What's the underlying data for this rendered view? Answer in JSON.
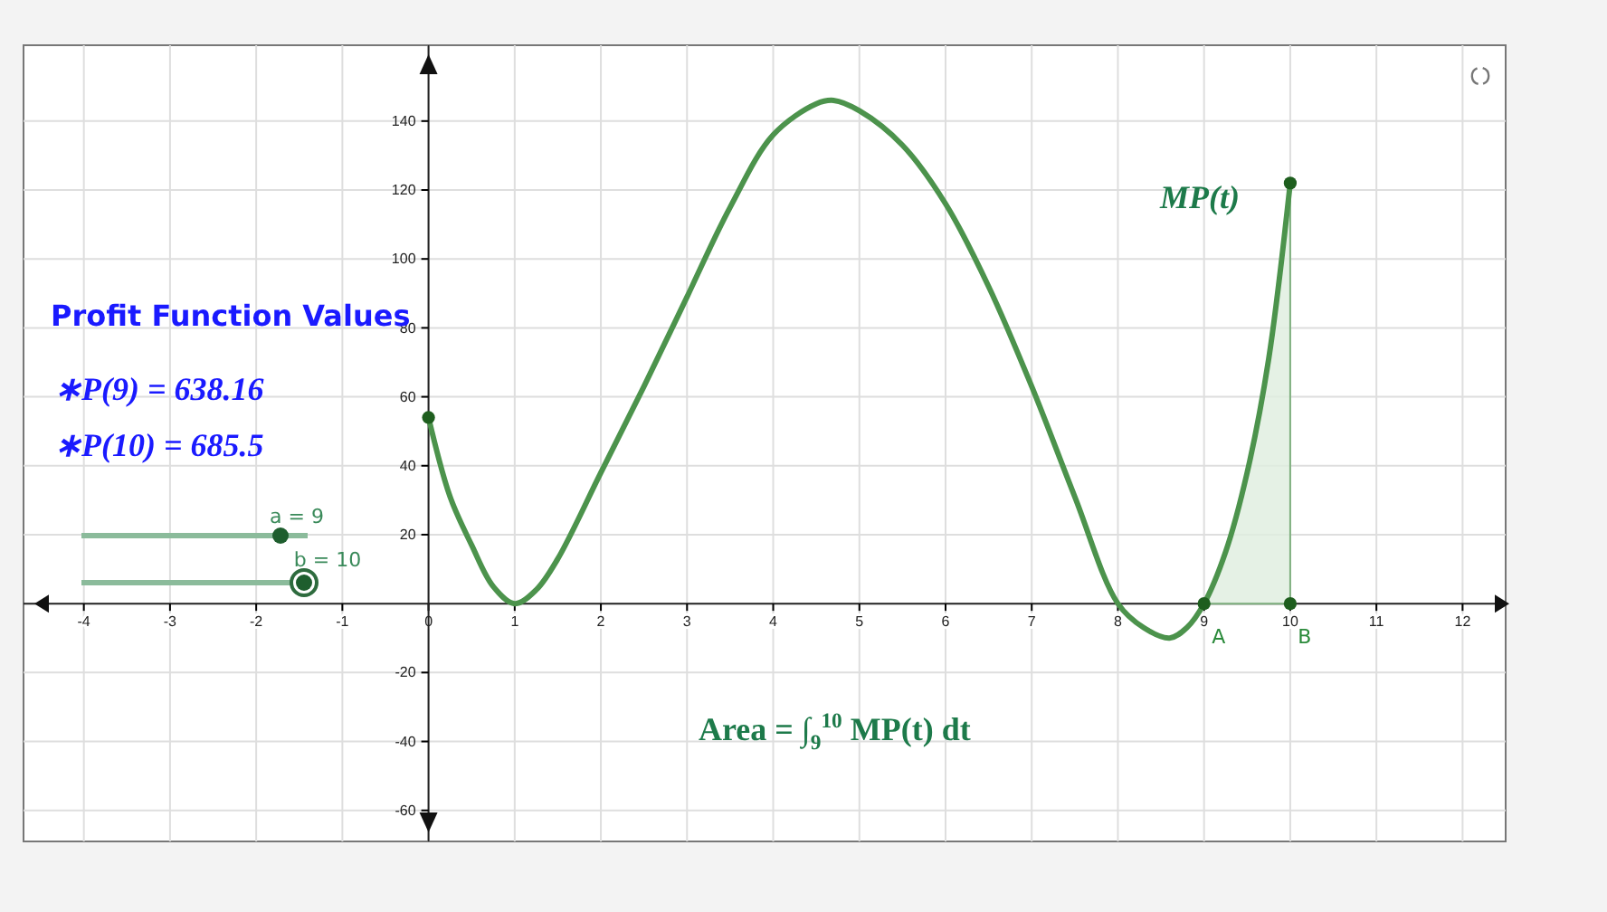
{
  "chart_data": {
    "type": "line",
    "x": [
      0,
      0.25,
      0.5,
      0.75,
      1,
      1.25,
      1.5,
      2,
      2.5,
      3,
      3.5,
      4,
      4.5,
      4.7,
      5,
      5.5,
      6,
      6.5,
      7,
      7.5,
      8,
      8.3,
      8.6,
      8.8,
      9,
      9.25,
      9.5,
      9.75,
      10
    ],
    "series": [
      {
        "name": "MP(t)",
        "color": "#4c934c",
        "values": [
          54,
          31,
          17,
          5,
          0,
          4,
          13,
          38,
          63,
          89,
          115,
          136,
          145,
          146,
          143,
          133,
          116,
          92,
          63,
          31,
          0,
          -7,
          -10,
          -7,
          0,
          15,
          38,
          71,
          122
        ]
      },
      {
        "type": "area",
        "color": "#dfeddf",
        "x": [
          9,
          9.25,
          9.5,
          9.75,
          10
        ],
        "values": [
          0,
          15,
          38,
          71,
          122
        ]
      },
      {
        "type": "scatter",
        "color": "#1e5e1e",
        "marker": "circle",
        "x": [
          0,
          9,
          10,
          10
        ],
        "values": [
          54,
          0,
          0,
          122
        ]
      }
    ],
    "xlim": [
      -4.7,
      12.5
    ],
    "ylim": [
      -69,
      162
    ],
    "xticks": [
      -4,
      -3,
      -2,
      -1,
      0,
      1,
      2,
      3,
      4,
      5,
      6,
      7,
      8,
      9,
      10,
      11,
      12
    ],
    "yticks": [
      -60,
      -40,
      -20,
      20,
      40,
      60,
      80,
      100,
      120,
      140
    ],
    "grid": true,
    "annotations": [
      "Profit Function Values",
      "∗P(9) = 638.16",
      "∗P(10) = 685.5",
      "a = 9",
      "b = 10",
      "Area = ∫$_{9}$$^{10}$ MP(t) dt",
      {
        "text": "A",
        "x": 9,
        "y": 0
      },
      {
        "text": "B",
        "x": 10,
        "y": 0
      }
    ]
  }
}
